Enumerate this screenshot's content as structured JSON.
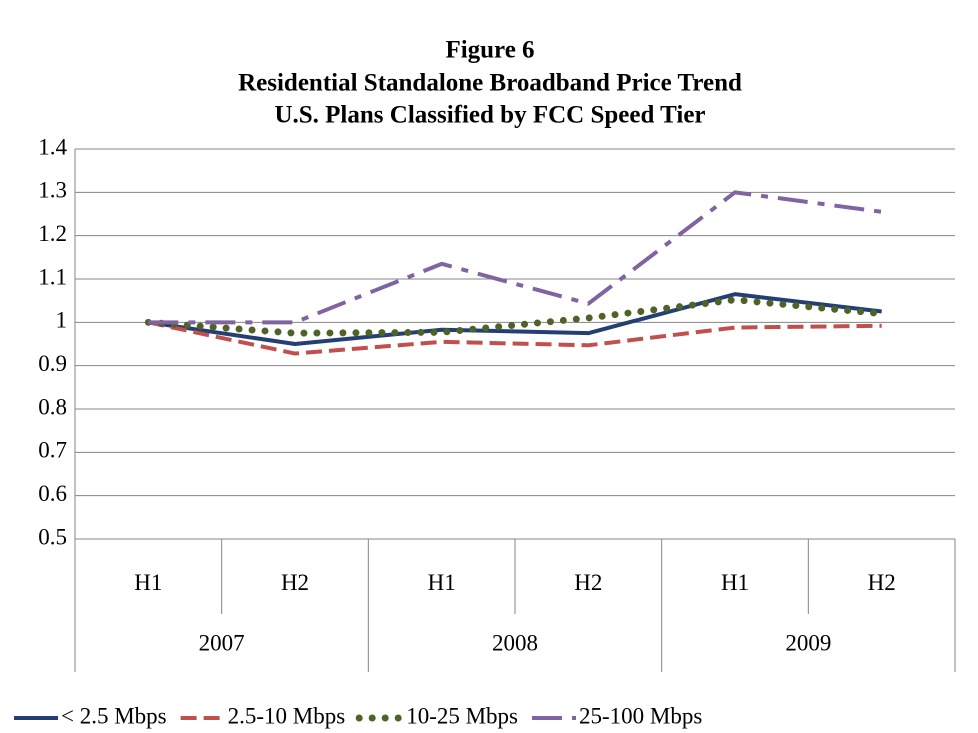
{
  "chart_data": {
    "type": "line",
    "title": [
      "Figure 6",
      "Residential Standalone Broadband Price Trend",
      "U.S. Plans Classified by FCC Speed Tier"
    ],
    "categories": [
      "H1",
      "H2",
      "H1",
      "H2",
      "H1",
      "H2"
    ],
    "groups": [
      "2007",
      "2008",
      "2009"
    ],
    "ylim": [
      0.5,
      1.4
    ],
    "yticks": [
      0.5,
      0.6,
      0.7,
      0.8,
      0.9,
      1,
      1.1,
      1.2,
      1.3,
      1.4
    ],
    "grid": true,
    "legend": "bottom",
    "series": [
      {
        "name": "< 2.5 Mbps",
        "color": "#243f73",
        "dash": "solid",
        "values": [
          1,
          0.95,
          0.983,
          0.975,
          1.065,
          1.025
        ]
      },
      {
        "name": "2.5-10 Mbps",
        "color": "#c0504d",
        "dash": "dashed",
        "values": [
          1,
          0.928,
          0.955,
          0.947,
          0.988,
          0.992
        ]
      },
      {
        "name": "10-25 Mbps",
        "color": "#4f6228",
        "dash": "dotted",
        "values": [
          1,
          0.975,
          0.977,
          1.01,
          1.052,
          1.02
        ]
      },
      {
        "name": "25-100 Mbps",
        "color": "#8064a2",
        "dash": "dashdot",
        "values": [
          1,
          1,
          1.135,
          1.043,
          1.3,
          1.255
        ]
      }
    ]
  }
}
